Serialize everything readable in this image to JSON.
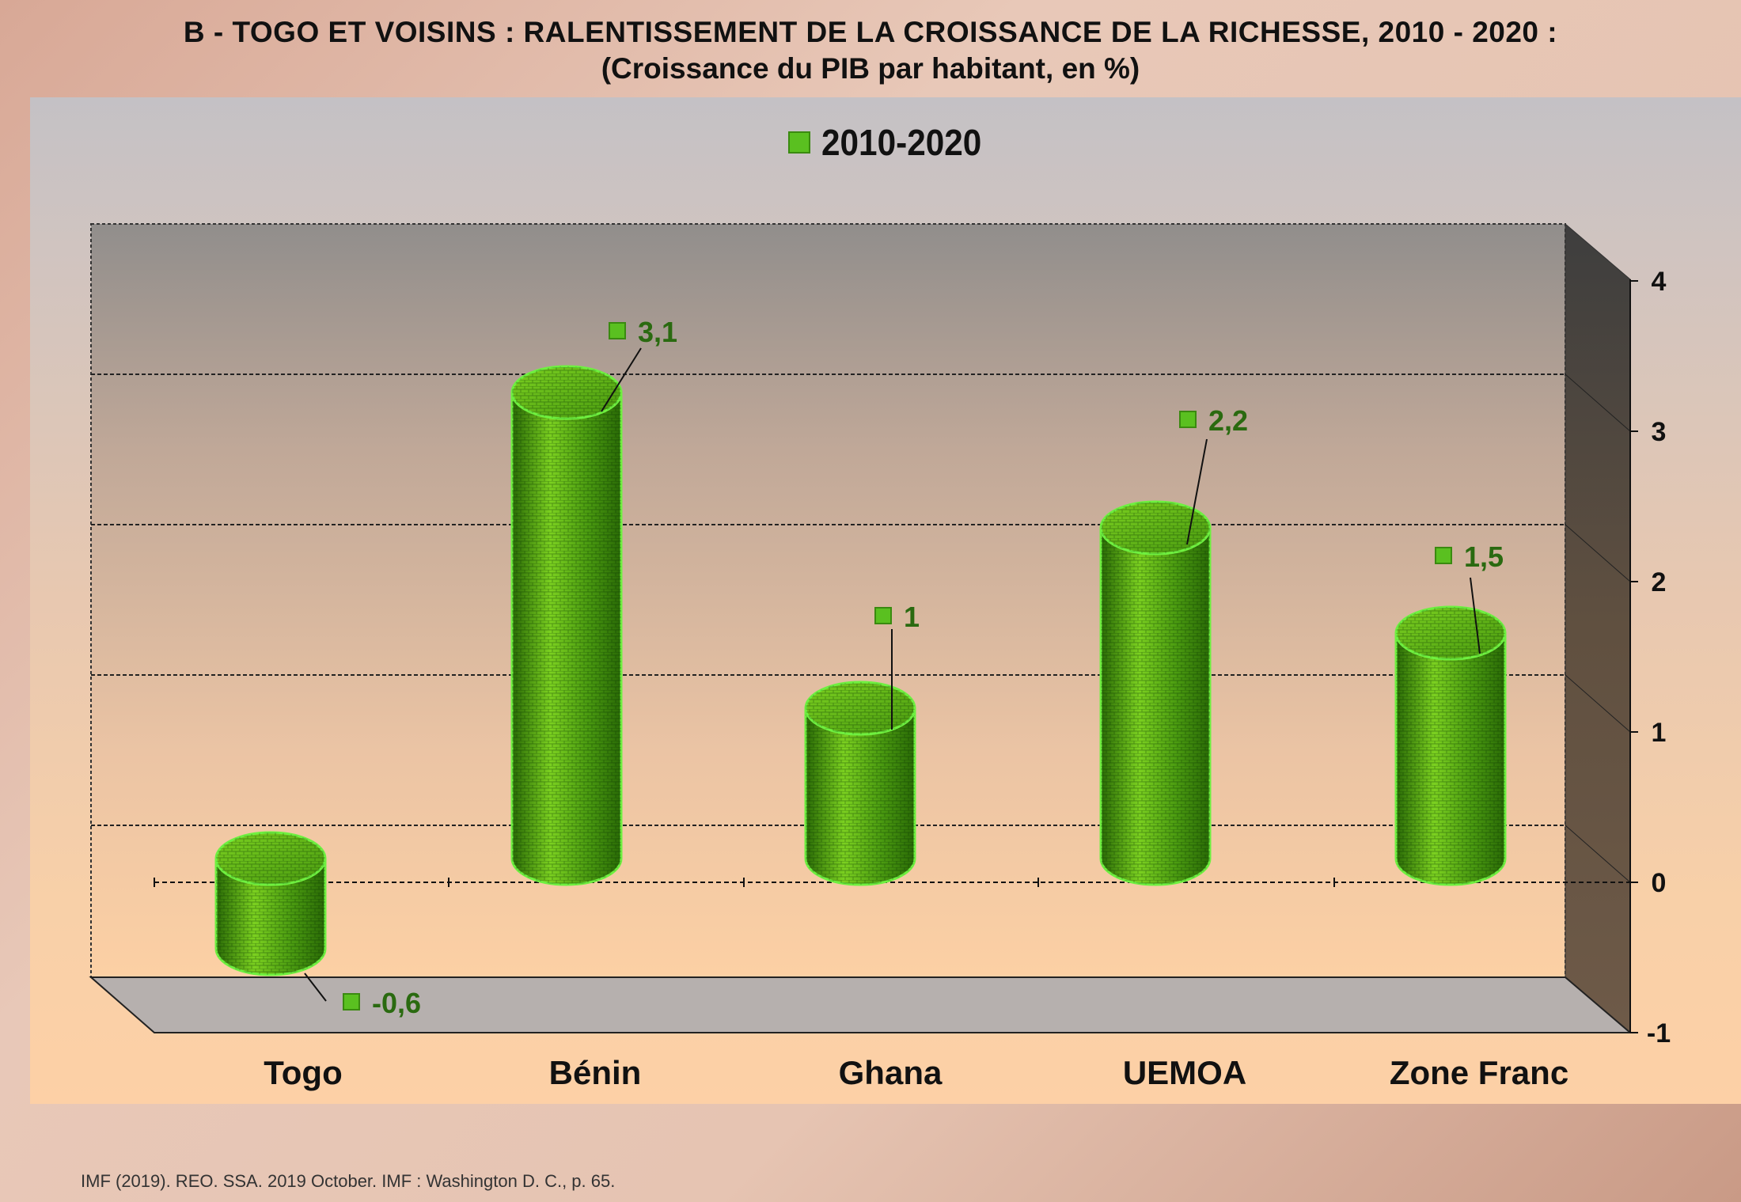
{
  "title": "B - TOGO ET VOISINS : RALENTISSEMENT DE LA CROISSANCE DE LA RICHESSE, 2010 - 2020 :",
  "subtitle": "(Croissance du PIB par habitant, en %)",
  "source": "IMF (2019). REO. SSA. 2019 October. IMF : Washington D. C., p. 65.",
  "colors": {
    "bar": "#4a9a10",
    "bar_light": "#7bd020",
    "bar_dark": "#2a6a06",
    "edge": "#6ff040",
    "label": "#2a6a10",
    "marker": "#5ac020"
  },
  "chart_data": {
    "type": "bar",
    "title": "B - TOGO ET VOISINS : RALENTISSEMENT DE LA CROISSANCE DE LA RICHESSE, 2010 - 2020 :",
    "subtitle": "(Croissance du PIB par habitant, en %)",
    "categories": [
      "Togo",
      "Bénin",
      "Ghana",
      "UEMOA",
      "Zone Franc"
    ],
    "series": [
      {
        "name": "2010-2020",
        "values": [
          -0.6,
          3.1,
          1,
          2.2,
          1.5
        ]
      }
    ],
    "data_labels": [
      "-0,6",
      "3,1",
      "1",
      "2,2",
      "1,5"
    ],
    "yticks": [
      "-1",
      "0",
      "1",
      "2",
      "3",
      "4"
    ],
    "ylim": [
      -1,
      4
    ],
    "y_axis_side": "right",
    "legend": "top-center",
    "grid": true
  }
}
